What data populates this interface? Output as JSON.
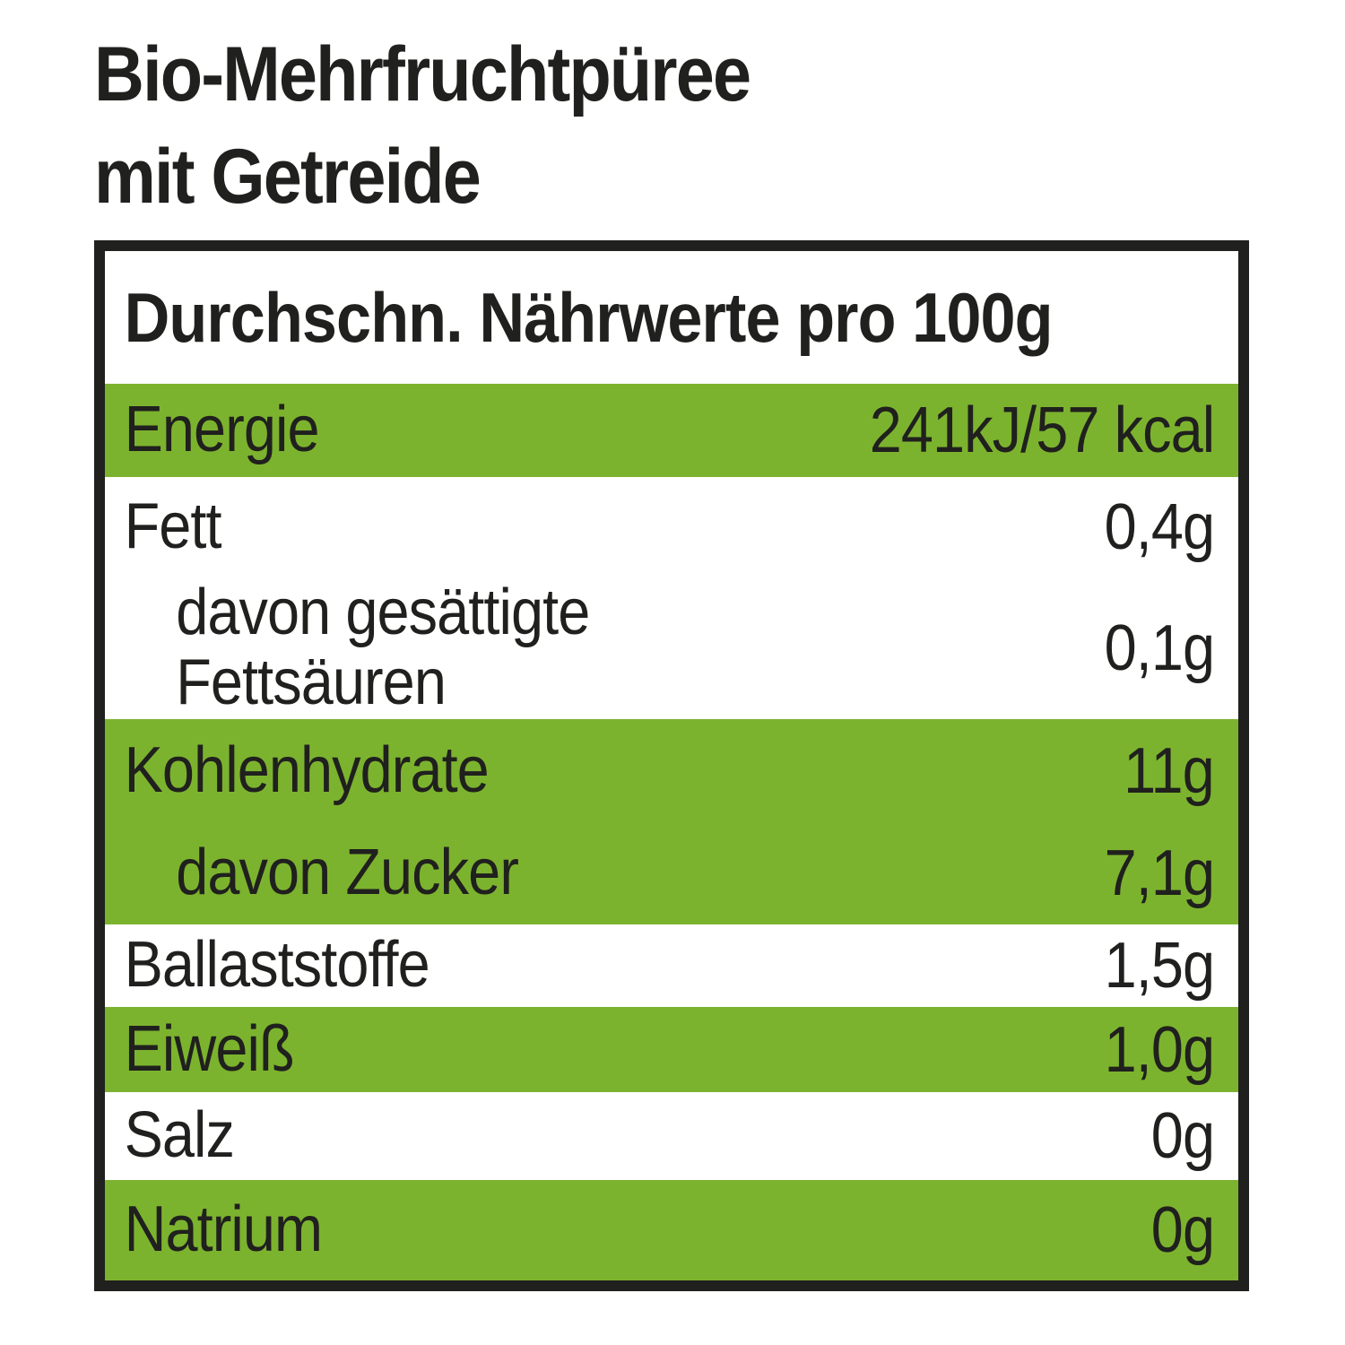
{
  "title": {
    "line1": "Bio-Mehrfruchtpüree",
    "line2": "mit Getreide"
  },
  "table": {
    "header": "Durchschn. Nährwerte pro 100g",
    "rows": [
      {
        "label": "Energie",
        "value": "241kJ/57 kcal",
        "highlighted": true
      },
      {
        "label": "Fett",
        "value": "0,4g",
        "highlighted": false
      },
      {
        "label": "davon gesättigte\nFettsäuren",
        "value": "0,1g",
        "highlighted": false
      },
      {
        "label": "Kohlenhydrate",
        "value": "11g",
        "highlighted": true
      },
      {
        "label": "davon Zucker",
        "value": "7,1g",
        "highlighted": true
      },
      {
        "label": "Ballaststoffe",
        "value": "1,5g",
        "highlighted": false
      },
      {
        "label": "Eiweiß",
        "value": "1,0g",
        "highlighted": true
      },
      {
        "label": "Salz",
        "value": "0g",
        "highlighted": false
      },
      {
        "label": "Natrium",
        "value": "0g",
        "highlighted": true
      }
    ],
    "colors": {
      "highlight_green": "#7cb32e",
      "ink_black": "#20201e"
    }
  }
}
